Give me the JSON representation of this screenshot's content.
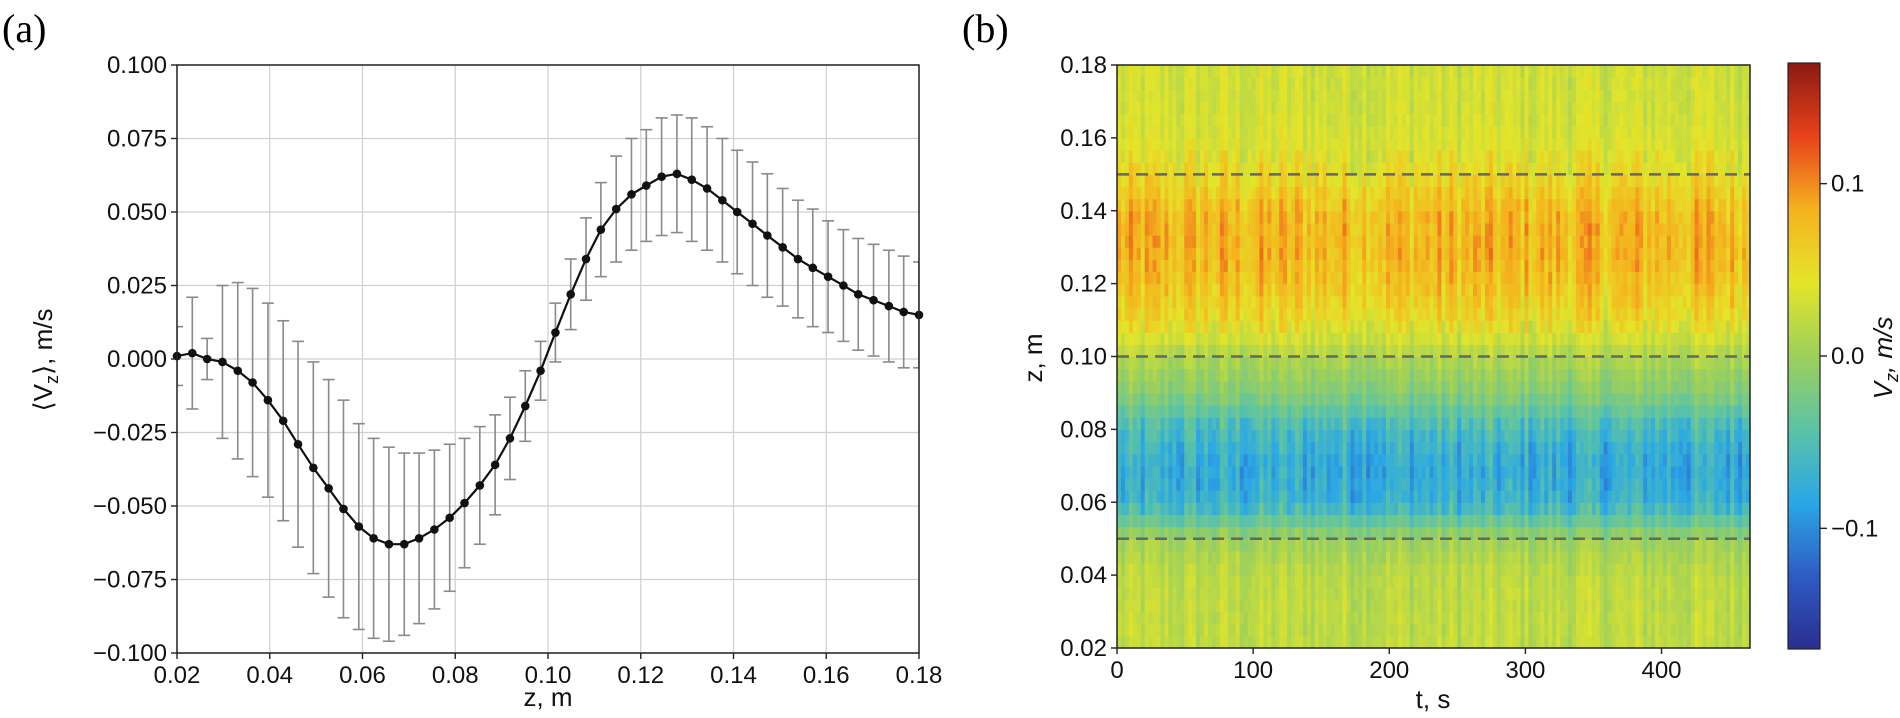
{
  "panel_labels": {
    "a": "(a)",
    "b": "(b)"
  },
  "chart_data": [
    {
      "type": "line",
      "panel": "(a)",
      "xlabel": "z, m",
      "ylabel_main": "⟨V",
      "ylabel_sub": "z",
      "ylabel_tail": "⟩, m/s",
      "xlim": [
        0.02,
        0.18
      ],
      "ylim": [
        -0.1,
        0.1
      ],
      "grid": true,
      "xticks": [
        0.02,
        0.04,
        0.06,
        0.08,
        0.1,
        0.12,
        0.14,
        0.16,
        0.18
      ],
      "xtick_labels": [
        "0.02",
        "0.04",
        "0.06",
        "0.08",
        "0.10",
        "0.12",
        "0.14",
        "0.16",
        "0.18"
      ],
      "yticks": [
        -0.1,
        -0.075,
        -0.05,
        -0.025,
        0.0,
        0.025,
        0.05,
        0.075,
        0.1
      ],
      "ytick_labels": [
        "−0.100",
        "−0.075",
        "−0.050",
        "−0.025",
        "0.000",
        "0.025",
        "0.050",
        "0.075",
        "0.100"
      ],
      "series": [
        {
          "name": "mean V_z",
          "x": [
            0.02,
            0.0233,
            0.0265,
            0.0298,
            0.0331,
            0.0363,
            0.0396,
            0.0429,
            0.0461,
            0.0494,
            0.0527,
            0.0559,
            0.0592,
            0.0624,
            0.0657,
            0.069,
            0.0722,
            0.0755,
            0.0788,
            0.082,
            0.0853,
            0.0886,
            0.0918,
            0.0951,
            0.0984,
            0.1016,
            0.1049,
            0.1082,
            0.1114,
            0.1147,
            0.118,
            0.1212,
            0.1245,
            0.1278,
            0.131,
            0.1343,
            0.1376,
            0.1408,
            0.1441,
            0.1473,
            0.1506,
            0.1539,
            0.1571,
            0.1604,
            0.1637,
            0.1669,
            0.1702,
            0.1735,
            0.1767,
            0.18
          ],
          "y": [
            0.001,
            0.002,
            0.0,
            -0.001,
            -0.004,
            -0.008,
            -0.014,
            -0.021,
            -0.029,
            -0.037,
            -0.044,
            -0.051,
            -0.057,
            -0.061,
            -0.063,
            -0.063,
            -0.061,
            -0.058,
            -0.054,
            -0.049,
            -0.043,
            -0.036,
            -0.027,
            -0.016,
            -0.004,
            0.009,
            0.022,
            0.034,
            0.044,
            0.051,
            0.056,
            0.059,
            0.062,
            0.063,
            0.061,
            0.058,
            0.054,
            0.05,
            0.046,
            0.042,
            0.038,
            0.034,
            0.031,
            0.028,
            0.025,
            0.022,
            0.02,
            0.018,
            0.016,
            0.015
          ],
          "err": [
            0.01,
            0.019,
            0.007,
            0.026,
            0.03,
            0.032,
            0.033,
            0.034,
            0.035,
            0.036,
            0.037,
            0.037,
            0.035,
            0.034,
            0.033,
            0.031,
            0.029,
            0.027,
            0.025,
            0.022,
            0.02,
            0.017,
            0.014,
            0.012,
            0.01,
            0.01,
            0.012,
            0.014,
            0.016,
            0.018,
            0.019,
            0.019,
            0.02,
            0.02,
            0.021,
            0.021,
            0.021,
            0.021,
            0.021,
            0.021,
            0.02,
            0.02,
            0.02,
            0.019,
            0.019,
            0.019,
            0.019,
            0.019,
            0.019,
            0.018
          ]
        }
      ]
    },
    {
      "type": "heatmap",
      "panel": "(b)",
      "xlabel": "t, s",
      "ylabel": "z, m",
      "xlim": [
        0,
        465
      ],
      "ylim": [
        0.02,
        0.18
      ],
      "xticks": [
        0,
        100,
        200,
        300,
        400
      ],
      "xtick_labels": [
        "0",
        "100",
        "200",
        "300",
        "400"
      ],
      "yticks": [
        0.02,
        0.04,
        0.06,
        0.08,
        0.1,
        0.12,
        0.14,
        0.16,
        0.18
      ],
      "ytick_labels": [
        "0.02",
        "0.04",
        "0.06",
        "0.08",
        "0.10",
        "0.12",
        "0.14",
        "0.16",
        "0.18"
      ],
      "dashed_lines_z": [
        0.05,
        0.1,
        0.15
      ],
      "colorbar": {
        "label_main": "V",
        "label_sub": "z",
        "label_tail": ", m/s",
        "vmin": -0.17,
        "vmax": 0.17,
        "ticks": [
          -0.1,
          0.0,
          0.1
        ],
        "tick_labels": [
          "−0.1",
          "0.0",
          "0.1"
        ],
        "colormap": [
          "#2b2d8f",
          "#2f5cc4",
          "#2aa7e6",
          "#5cc3a6",
          "#9dd05b",
          "#e4e52a",
          "#f5b21e",
          "#e8421b",
          "#8b1a12"
        ]
      },
      "profile_z": [
        0.02,
        0.03,
        0.04,
        0.05,
        0.06,
        0.07,
        0.08,
        0.09,
        0.1,
        0.11,
        0.12,
        0.13,
        0.14,
        0.15,
        0.16,
        0.17,
        0.18
      ],
      "profile_v": [
        0.02,
        0.02,
        0.018,
        0.0,
        -0.07,
        -0.08,
        -0.06,
        -0.015,
        0.01,
        0.05,
        0.07,
        0.08,
        0.075,
        0.05,
        0.035,
        0.03,
        0.03
      ]
    }
  ]
}
